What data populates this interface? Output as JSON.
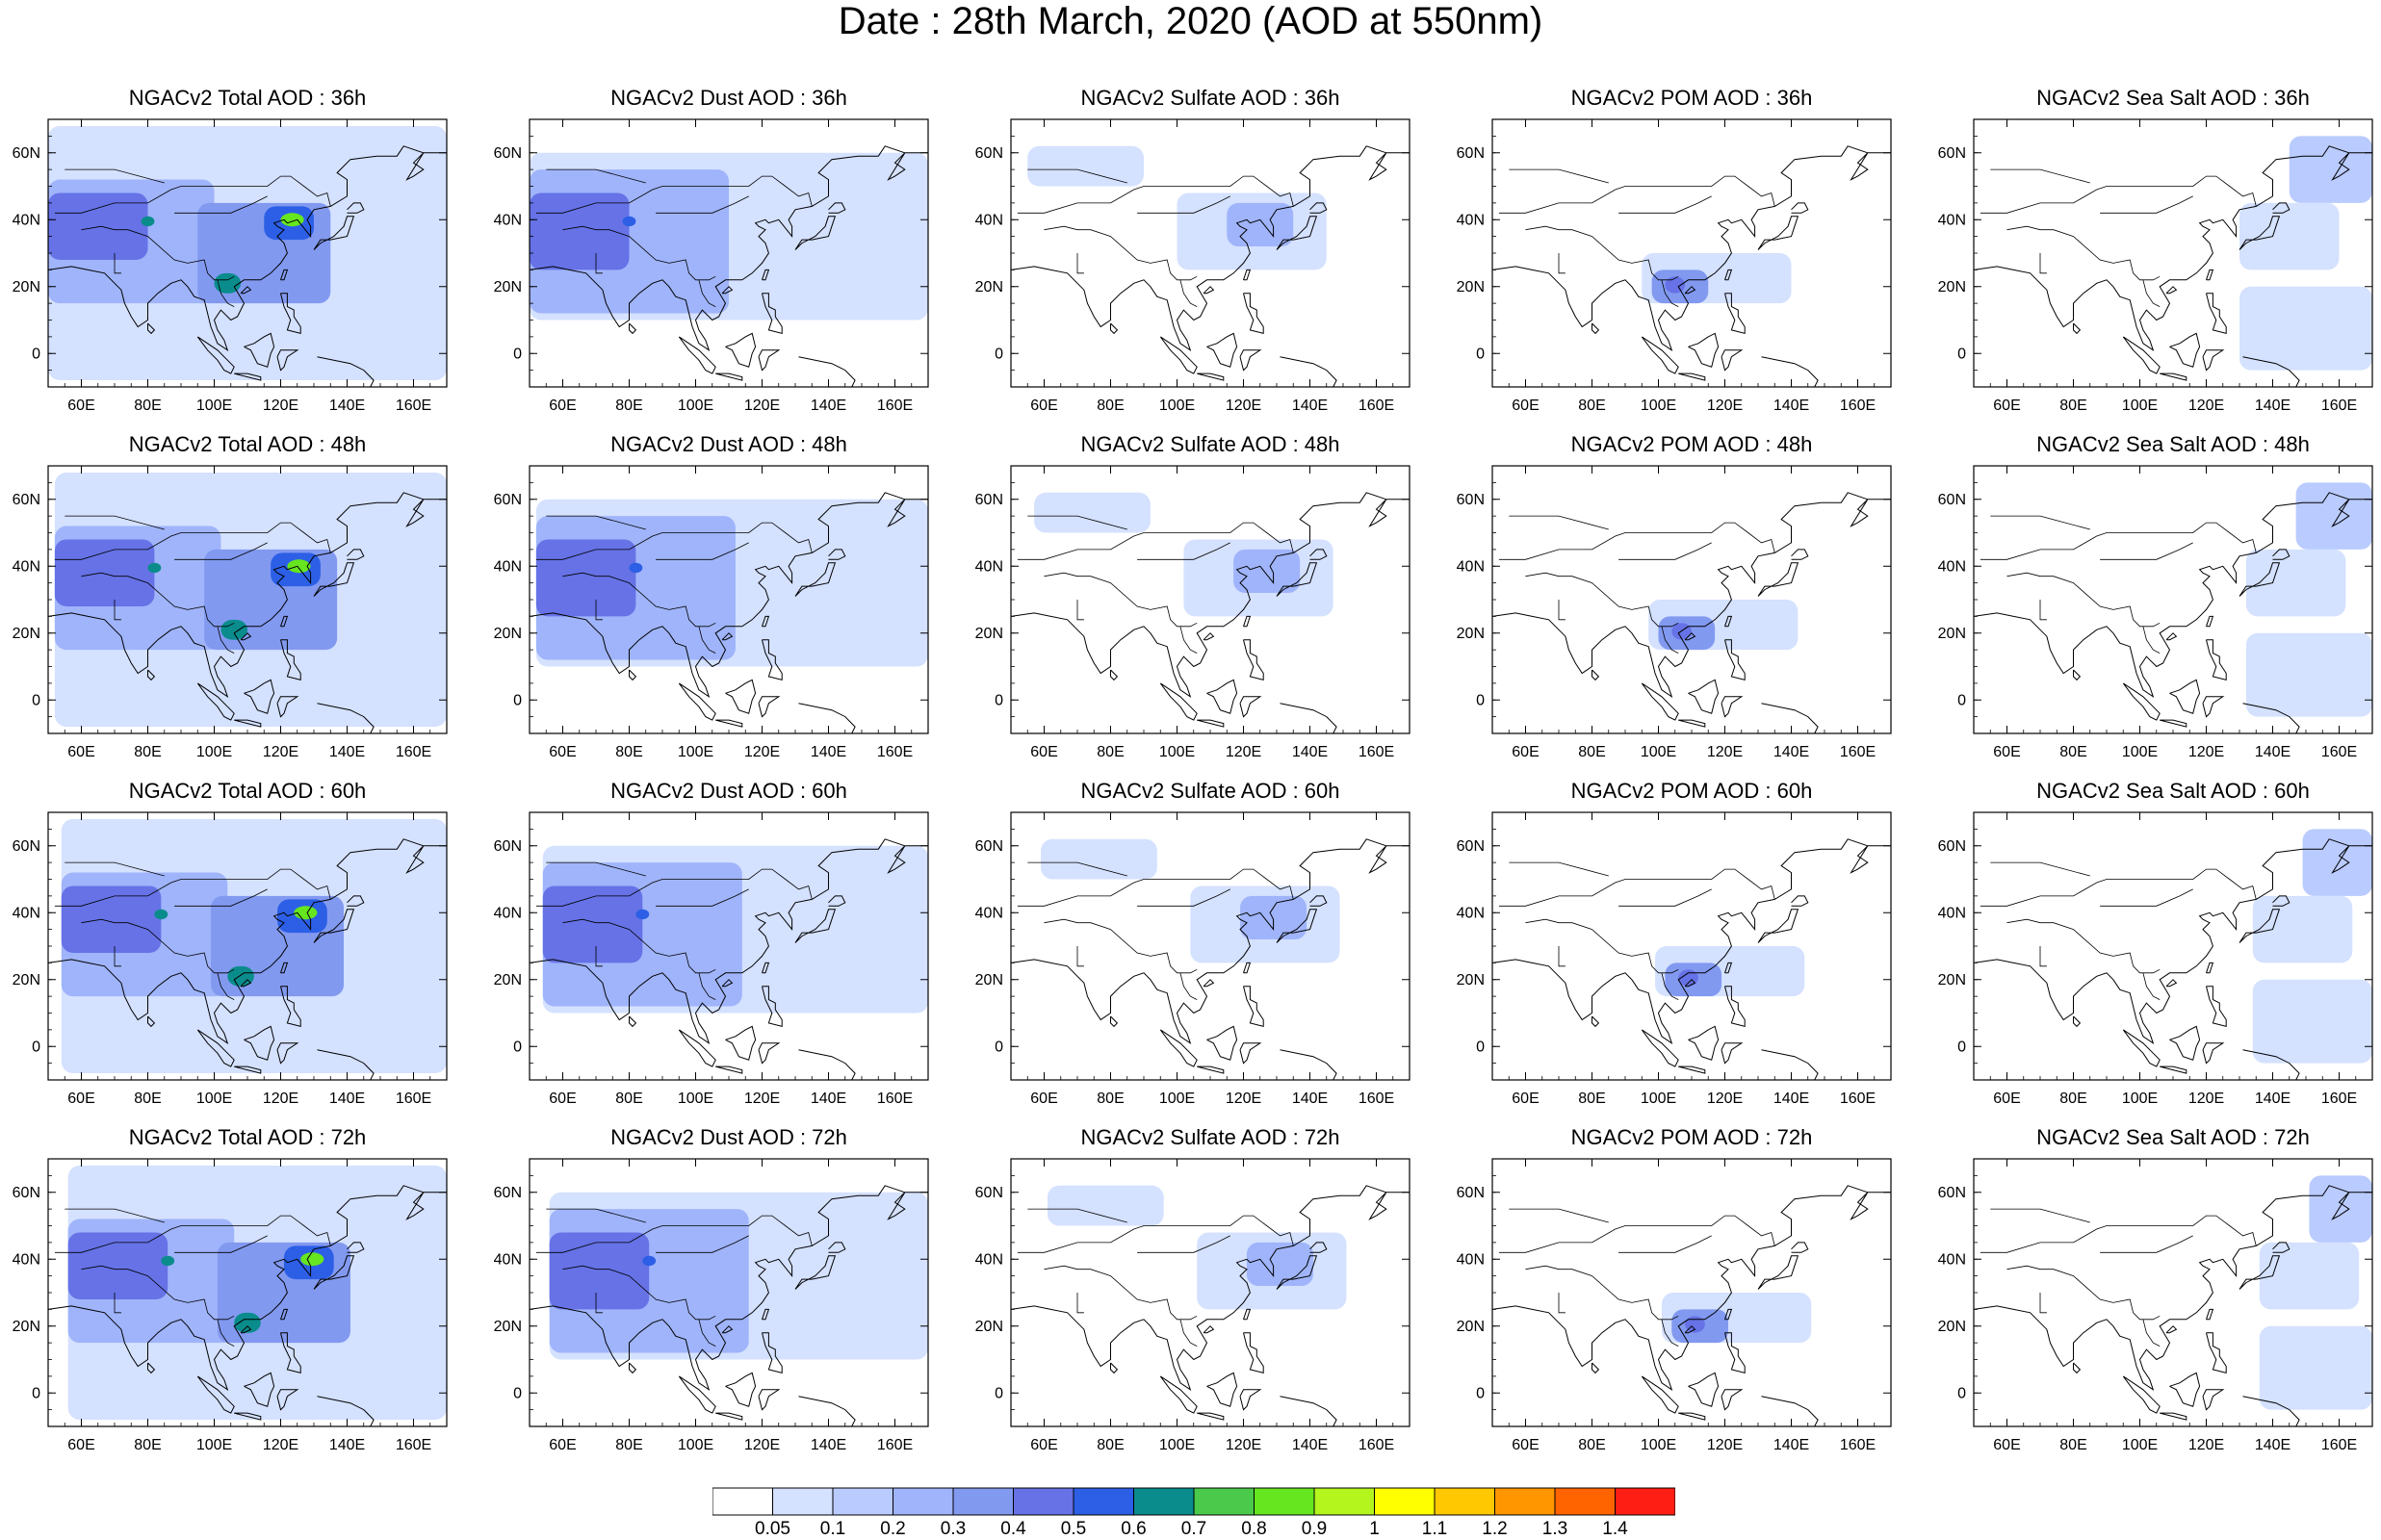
{
  "title": "Date : 28th March, 2020 (AOD at 550nm)",
  "x_ticks": [
    "60E",
    "80E",
    "100E",
    "120E",
    "140E",
    "160E"
  ],
  "x_tick_values": [
    60,
    80,
    100,
    120,
    140,
    160
  ],
  "y_ticks": [
    "60N",
    "40N",
    "20N",
    "0"
  ],
  "y_tick_values": [
    60,
    40,
    20,
    0
  ],
  "lon_range": [
    50,
    170
  ],
  "lat_range": [
    -10,
    70
  ],
  "colorbar": {
    "labels": [
      "0.05",
      "0.1",
      "0.2",
      "0.3",
      "0.4",
      "0.5",
      "0.6",
      "0.7",
      "0.8",
      "0.9",
      "1",
      "1.1",
      "1.2",
      "1.3",
      "1.4"
    ],
    "colors": [
      "#ffffff",
      "#d4e1ff",
      "#b9cbff",
      "#9fb4fa",
      "#8299f0",
      "#6672e6",
      "#2c5fe6",
      "#0a8c8c",
      "#4ac94a",
      "#66e61e",
      "#b4f51e",
      "#ffff00",
      "#ffc800",
      "#ff9600",
      "#ff6400",
      "#ff1e14"
    ]
  },
  "chart_data": {
    "type": "heatmap",
    "title": "Date : 28th March, 2020 (AOD at 550nm)",
    "xlabel": "",
    "ylabel": "",
    "xlim": [
      50,
      170
    ],
    "ylim": [
      -10,
      70
    ],
    "rows": [
      "36h",
      "48h",
      "60h",
      "72h"
    ],
    "columns": [
      "Total",
      "Dust",
      "Sulfate",
      "POM",
      "Sea Salt"
    ],
    "panel_titles": [
      [
        "NGACv2 Total AOD : 36h",
        "NGACv2 Dust AOD : 36h",
        "NGACv2 Sulfate AOD : 36h",
        "NGACv2 POM AOD : 36h",
        "NGACv2 Sea Salt AOD : 36h"
      ],
      [
        "NGACv2 Total AOD : 48h",
        "NGACv2 Dust AOD : 48h",
        "NGACv2 Sulfate AOD : 48h",
        "NGACv2 POM AOD : 48h",
        "NGACv2 Sea Salt AOD : 48h"
      ],
      [
        "NGACv2 Total AOD : 60h",
        "NGACv2 Dust AOD : 60h",
        "NGACv2 Sulfate AOD : 60h",
        "NGACv2 POM AOD : 60h",
        "NGACv2 Sea Salt AOD : 60h"
      ],
      [
        "NGACv2 Total AOD : 72h",
        "NGACv2 Dust AOD : 72h",
        "NGACv2 Sulfate AOD : 72h",
        "NGACv2 POM AOD : 72h",
        "NGACv2 Sea Salt  AOD : 72h"
      ]
    ],
    "fields": {
      "Total": [
        {
          "lon": [
            50,
            170
          ],
          "lat": [
            -8,
            68
          ],
          "aod": 0.05
        },
        {
          "lon": [
            50,
            100
          ],
          "lat": [
            15,
            52
          ],
          "aod": 0.2
        },
        {
          "lon": [
            50,
            80
          ],
          "lat": [
            28,
            48
          ],
          "aod": 0.4
        },
        {
          "lon": [
            95,
            135
          ],
          "lat": [
            15,
            45
          ],
          "aod": 0.3
        },
        {
          "lon": [
            115,
            130
          ],
          "lat": [
            34,
            44
          ],
          "aod": 0.5
        },
        {
          "lon": [
            120,
            127
          ],
          "lat": [
            38,
            42
          ],
          "aod": 0.8
        },
        {
          "lon": [
            78,
            82
          ],
          "lat": [
            38,
            41
          ],
          "aod": 0.6
        },
        {
          "lon": [
            100,
            108
          ],
          "lat": [
            18,
            24
          ],
          "aod": 0.6
        }
      ],
      "Dust": [
        {
          "lon": [
            50,
            170
          ],
          "lat": [
            10,
            60
          ],
          "aod": 0.05
        },
        {
          "lon": [
            50,
            110
          ],
          "lat": [
            12,
            55
          ],
          "aod": 0.2
        },
        {
          "lon": [
            50,
            80
          ],
          "lat": [
            25,
            48
          ],
          "aod": 0.4
        },
        {
          "lon": [
            78,
            82
          ],
          "lat": [
            38,
            41
          ],
          "aod": 0.5
        }
      ],
      "Sulfate": [
        {
          "lon": [
            100,
            145
          ],
          "lat": [
            25,
            48
          ],
          "aod": 0.05
        },
        {
          "lon": [
            115,
            135
          ],
          "lat": [
            32,
            45
          ],
          "aod": 0.2
        },
        {
          "lon": [
            55,
            90
          ],
          "lat": [
            50,
            62
          ],
          "aod": 0.05
        }
      ],
      "POM": [
        {
          "lon": [
            95,
            140
          ],
          "lat": [
            15,
            30
          ],
          "aod": 0.05
        },
        {
          "lon": [
            98,
            115
          ],
          "lat": [
            15,
            25
          ],
          "aod": 0.3
        },
        {
          "lon": [
            102,
            108
          ],
          "lat": [
            18,
            23
          ],
          "aod": 0.4
        }
      ],
      "Sea Salt": [
        {
          "lon": [
            145,
            170
          ],
          "lat": [
            45,
            65
          ],
          "aod": 0.1
        },
        {
          "lon": [
            130,
            170
          ],
          "lat": [
            -5,
            20
          ],
          "aod": 0.05
        },
        {
          "lon": [
            130,
            160
          ],
          "lat": [
            25,
            45
          ],
          "aod": 0.05
        }
      ]
    }
  }
}
